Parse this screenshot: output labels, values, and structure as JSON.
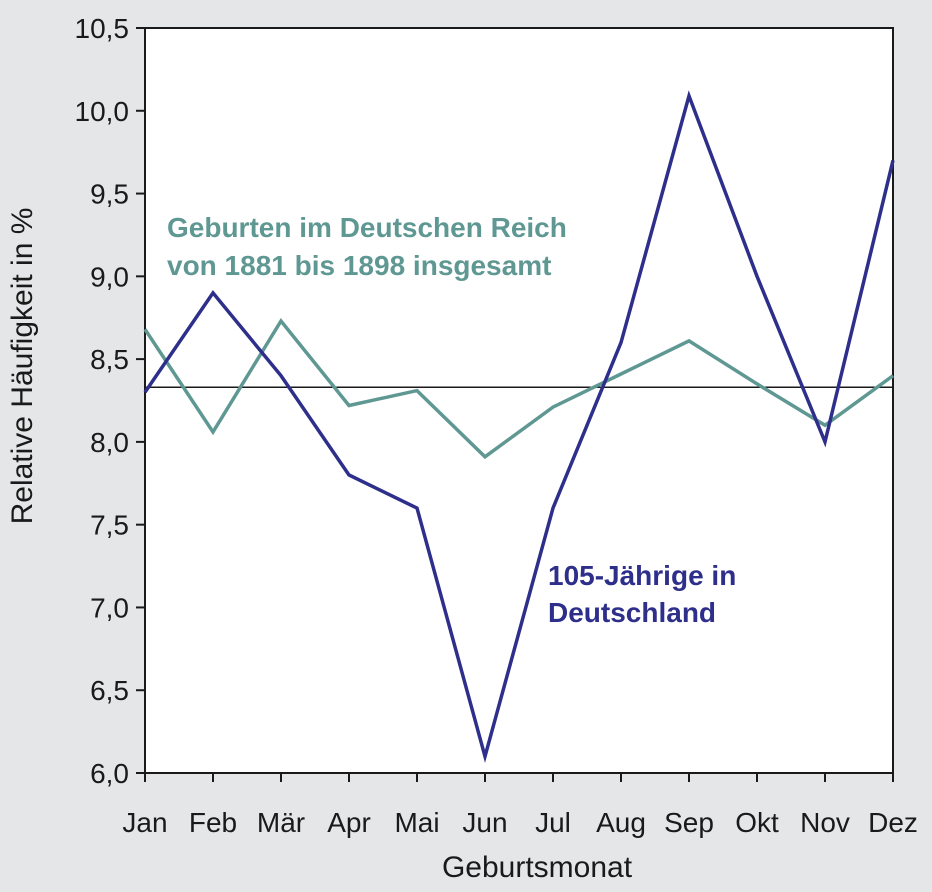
{
  "chart_data": {
    "type": "line",
    "title": "",
    "xlabel": "Geburtsmonat",
    "ylabel": "Relative Häufigkeit in %",
    "categories": [
      "Jan",
      "Feb",
      "Mär",
      "Apr",
      "Mai",
      "Jun",
      "Jul",
      "Aug",
      "Sep",
      "Okt",
      "Nov",
      "Dez"
    ],
    "yticks": [
      "6,0",
      "6,5",
      "7,0",
      "7,5",
      "8,0",
      "8,5",
      "9,0",
      "9,5",
      "10,0",
      "10,5"
    ],
    "ylim": [
      6.0,
      10.5
    ],
    "grid": false,
    "legend": "none (series labelled inline)",
    "reference_line": 8.33,
    "series": [
      {
        "name": "Geburten im Deutschen Reich von 1881 bis 1898 insgesamt",
        "label_lines": [
          "Geburten im Deutschen Reich",
          "von 1881 bis 1898 insgesamt"
        ],
        "color": "#5f9893",
        "values": [
          8.68,
          8.06,
          8.73,
          8.22,
          8.31,
          7.91,
          8.21,
          8.41,
          8.61,
          8.35,
          8.1,
          8.4
        ]
      },
      {
        "name": "105-Jährige in Deutschland",
        "label_lines": [
          "105-Jährige in",
          "Deutschland"
        ],
        "color": "#2e2f8b",
        "values": [
          8.3,
          8.9,
          8.4,
          7.8,
          7.6,
          6.1,
          7.6,
          8.6,
          10.09,
          9.0,
          8.0,
          9.7
        ]
      }
    ]
  }
}
